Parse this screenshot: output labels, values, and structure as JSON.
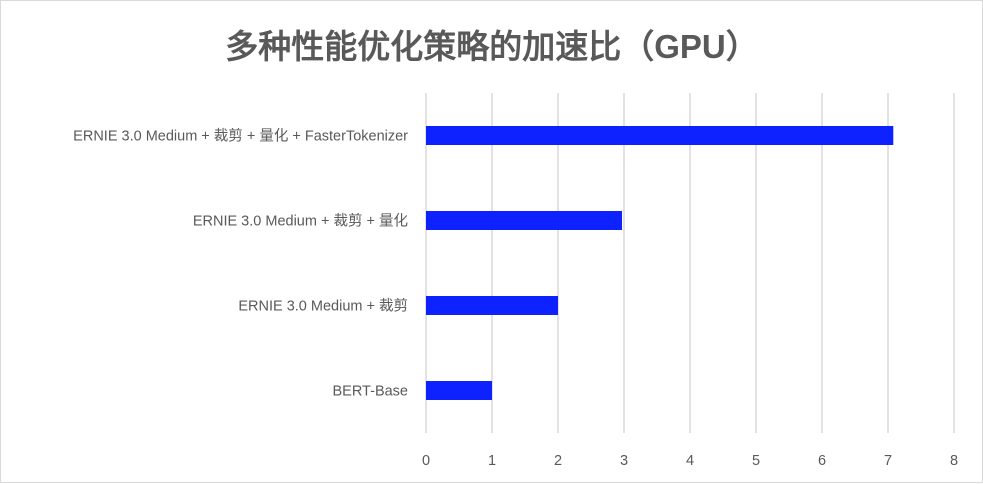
{
  "chart_data": {
    "type": "bar",
    "orientation": "horizontal",
    "title": "多种性能优化策略的加速比（GPU）",
    "categories": [
      "ERNIE 3.0 Medium + 裁剪 + 量化 + FasterTokenizer",
      "ERNIE 3.0 Medium + 裁剪 + 量化",
      "ERNIE 3.0 Medium + 裁剪",
      "BERT-Base"
    ],
    "values": [
      7.08,
      2.97,
      2.0,
      1.0
    ],
    "xlabel": "",
    "ylabel": "",
    "xlim": [
      0,
      8
    ],
    "xticks": [
      "0",
      "1",
      "2",
      "3",
      "4",
      "5",
      "6",
      "7",
      "8"
    ],
    "grid": true,
    "legend": "none",
    "colors": {
      "bar": "#0d22ff",
      "grid": "#d9d9d9",
      "text": "#595959"
    }
  }
}
